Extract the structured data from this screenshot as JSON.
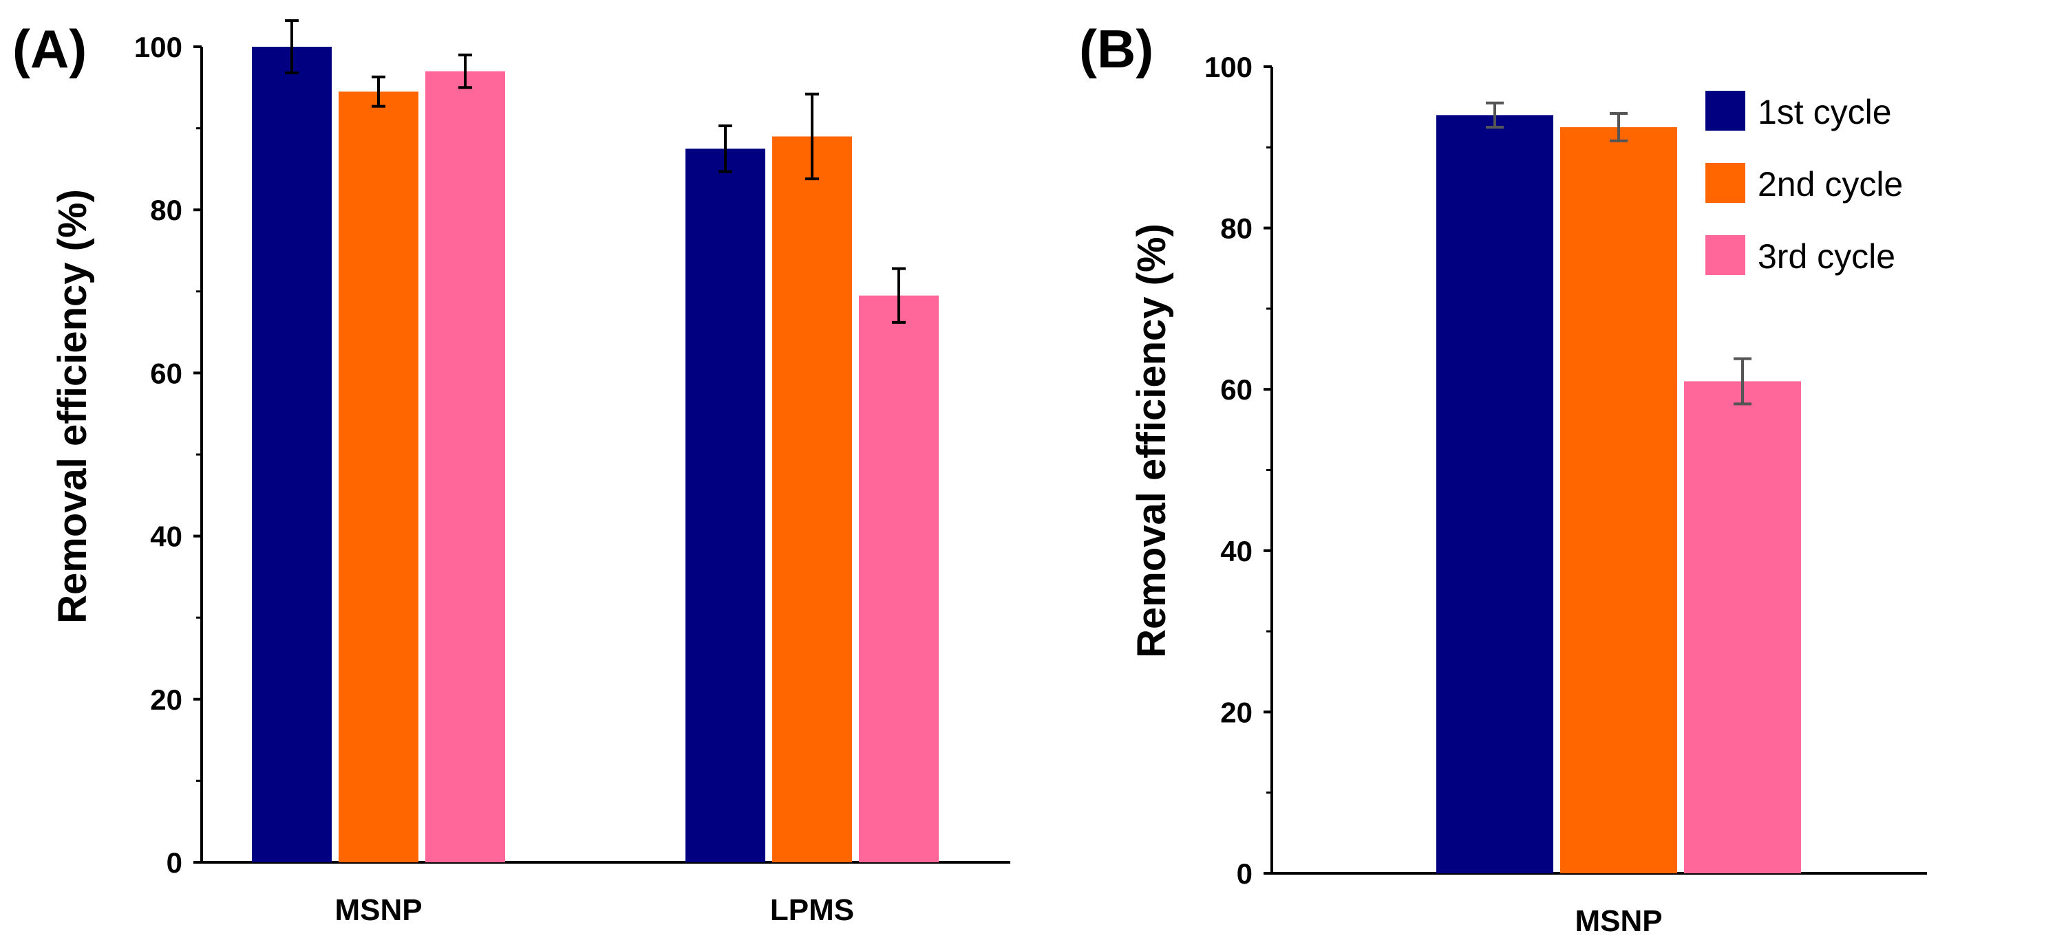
{
  "colors": {
    "series": [
      "#000080",
      "#FF6600",
      "#FF6699"
    ],
    "axis": "#000000",
    "error_bar_a": "#000000",
    "error_bar_b": "#555555"
  },
  "chart_data": [
    {
      "type": "bar",
      "panel_label": "(A)",
      "title": "",
      "xlabel": "",
      "ylabel": "Removal efficiency (%)",
      "ylim": [
        0,
        100
      ],
      "yticks": [
        0,
        20,
        40,
        60,
        80,
        100
      ],
      "grid": false,
      "legend": "none",
      "categories": [
        "MSNP",
        "LPMS"
      ],
      "series": [
        {
          "name": "1st cycle",
          "values": [
            100,
            87.5
          ],
          "errors": [
            3.2,
            2.8
          ]
        },
        {
          "name": "2nd cycle",
          "values": [
            94.5,
            89
          ],
          "errors": [
            1.8,
            5.2
          ]
        },
        {
          "name": "3rd cycle",
          "values": [
            97,
            69.5
          ],
          "errors": [
            2.0,
            3.3
          ]
        }
      ]
    },
    {
      "type": "bar",
      "panel_label": "(B)",
      "title": "",
      "xlabel": "",
      "ylabel": "Removal efficiency (%)",
      "ylim": [
        0,
        100
      ],
      "yticks": [
        0,
        20,
        40,
        60,
        80,
        100
      ],
      "grid": false,
      "legend": "top-right",
      "categories": [
        "MSNP"
      ],
      "series": [
        {
          "name": "1st cycle",
          "values": [
            94
          ],
          "errors": [
            1.5
          ]
        },
        {
          "name": "2nd cycle",
          "values": [
            92.5
          ],
          "errors": [
            1.7
          ]
        },
        {
          "name": "3rd cycle",
          "values": [
            61
          ],
          "errors": [
            2.8
          ]
        }
      ]
    }
  ]
}
